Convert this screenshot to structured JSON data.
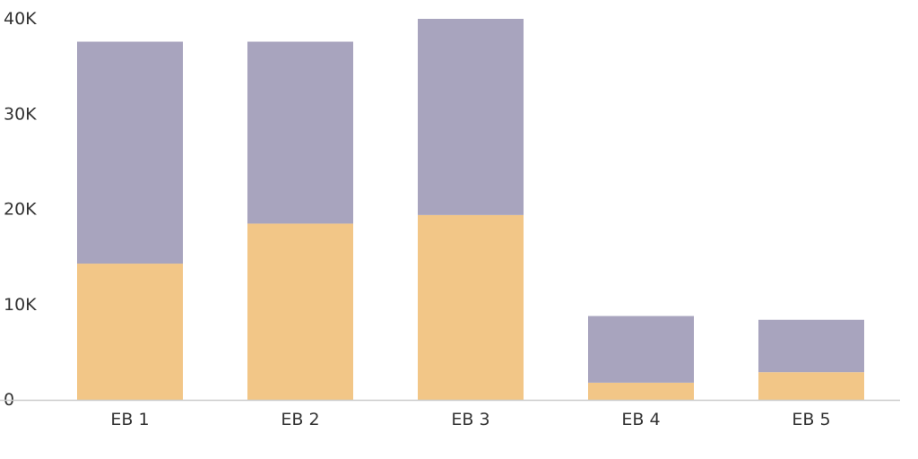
{
  "chart_data": {
    "type": "bar",
    "stacked": true,
    "categories": [
      "EB 1",
      "EB 2",
      "EB 3",
      "EB 4",
      "EB 5"
    ],
    "series": [
      {
        "values": [
          14300,
          18500,
          19400,
          1800,
          2900
        ],
        "color": "#F2C687"
      },
      {
        "values": [
          23300,
          19100,
          20600,
          7000,
          5500
        ],
        "color": "#A8A4BE"
      }
    ],
    "yticks": [
      {
        "value": 0,
        "label": "0"
      },
      {
        "value": 10000,
        "label": "10K"
      },
      {
        "value": 20000,
        "label": "20K"
      },
      {
        "value": 30000,
        "label": "30K"
      },
      {
        "value": 40000,
        "label": "40K"
      }
    ],
    "ylim": [
      0,
      40000
    ],
    "grid": false,
    "legend": "none",
    "axis_color": "#CCCCCC",
    "text_color": "#333333"
  }
}
